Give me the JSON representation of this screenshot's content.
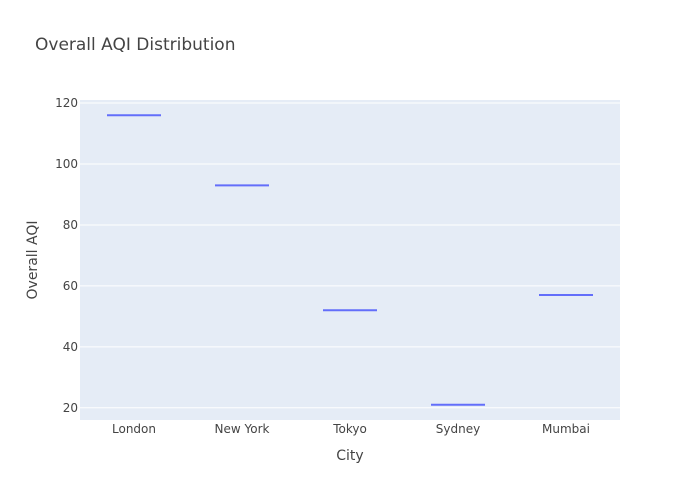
{
  "chart_data": {
    "type": "box",
    "title": "Overall AQI Distribution",
    "xlabel": "City",
    "ylabel": "Overall AQI",
    "categories": [
      "London",
      "New York",
      "Tokyo",
      "Sydney",
      "Mumbai"
    ],
    "values": [
      116,
      93,
      52,
      21,
      57
    ],
    "ylim": [
      16,
      121
    ],
    "yticks": [
      20,
      40,
      60,
      80,
      100,
      120
    ],
    "grid": true,
    "colors": {
      "plot_background": "#e5ecf6",
      "grid": "#ffffff",
      "series": "#636efa",
      "text": "#444444"
    }
  }
}
